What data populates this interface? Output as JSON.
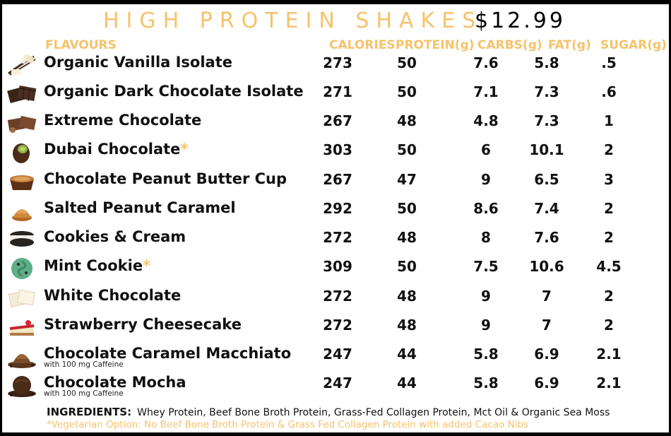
{
  "title": "HIGH PROTEIN SHAKES",
  "price": "$12.99",
  "headers": {
    "flavours": "FLAVOURS",
    "calories": "CALORIES",
    "protein": "PROTEIN(g)",
    "carbs": "CARBS(g)",
    "fat": "FAT(g)",
    "sugar": "SUGAR(g)"
  },
  "rows": [
    {
      "name": "Organic Vanilla Isolate",
      "star": "",
      "note": "",
      "calories": "273",
      "protein": "50",
      "carbs": "7.6",
      "fat": "5.8",
      "sugar": ".5",
      "icon": "vanilla-icon"
    },
    {
      "name": "Organic Dark Chocolate Isolate",
      "star": "",
      "note": "",
      "calories": "271",
      "protein": "50",
      "carbs": "7.1",
      "fat": "7.3",
      "sugar": ".6",
      "icon": "dark-chocolate-icon"
    },
    {
      "name": "Extreme Chocolate",
      "star": "",
      "note": "",
      "calories": "267",
      "protein": "48",
      "carbs": "4.8",
      "fat": "7.3",
      "sugar": "1",
      "icon": "chocolate-bar-icon"
    },
    {
      "name": "Dubai Chocolate",
      "star": "*",
      "note": "",
      "calories": "303",
      "protein": "50",
      "carbs": "6",
      "fat": "10.1",
      "sugar": "2",
      "icon": "dubai-chocolate-icon"
    },
    {
      "name": "Chocolate Peanut Butter Cup",
      "star": "",
      "note": "",
      "calories": "267",
      "protein": "47",
      "carbs": "9",
      "fat": "6.5",
      "sugar": "3",
      "icon": "peanut-butter-cup-icon"
    },
    {
      "name": "Salted Peanut Caramel",
      "star": "",
      "note": "",
      "calories": "292",
      "protein": "50",
      "carbs": "8.6",
      "fat": "7.4",
      "sugar": "2",
      "icon": "caramel-swirl-icon"
    },
    {
      "name": "Cookies & Cream",
      "star": "",
      "note": "",
      "calories": "272",
      "protein": "48",
      "carbs": "8",
      "fat": "7.6",
      "sugar": "2",
      "icon": "cookie-sandwich-icon"
    },
    {
      "name": "Mint Cookie",
      "star": "*",
      "note": "",
      "calories": "309",
      "protein": "50",
      "carbs": "7.5",
      "fat": "10.6",
      "sugar": "4.5",
      "icon": "mint-swirl-icon"
    },
    {
      "name": "White Chocolate",
      "star": "",
      "note": "",
      "calories": "272",
      "protein": "48",
      "carbs": "9",
      "fat": "7",
      "sugar": "2",
      "icon": "white-chocolate-icon"
    },
    {
      "name": "Strawberry Cheesecake",
      "star": "",
      "note": "",
      "calories": "272",
      "protein": "48",
      "carbs": "9",
      "fat": "7",
      "sugar": "2",
      "icon": "cheesecake-icon"
    },
    {
      "name": "Chocolate Caramel Macchiato",
      "star": "",
      "note": "with 100 mg Caffeine",
      "calories": "247",
      "protein": "44",
      "carbs": "5.8",
      "fat": "6.9",
      "sugar": "2.1",
      "icon": "macchiato-icon"
    },
    {
      "name": "Chocolate Mocha",
      "star": "",
      "note": "with 100 mg Caffeine",
      "calories": "247",
      "protein": "44",
      "carbs": "5.8",
      "fat": "6.9",
      "sugar": "2.1",
      "icon": "mocha-icon"
    }
  ],
  "ingredients_label": "INGREDIENTS:",
  "ingredients_text": "Whey Protein, Beef Bone Broth Protein, Grass-Fed Collagen Protein, Mct Oil & Organic Sea Moss",
  "vegetarian_note": "*Vegetarian Option: No Beef Bone Broth Protein & Grass Fed Collagen Protein with added Cacao Nibs",
  "colors": {
    "accent": "#f6c26b",
    "text": "#111111",
    "border": "#000000"
  }
}
